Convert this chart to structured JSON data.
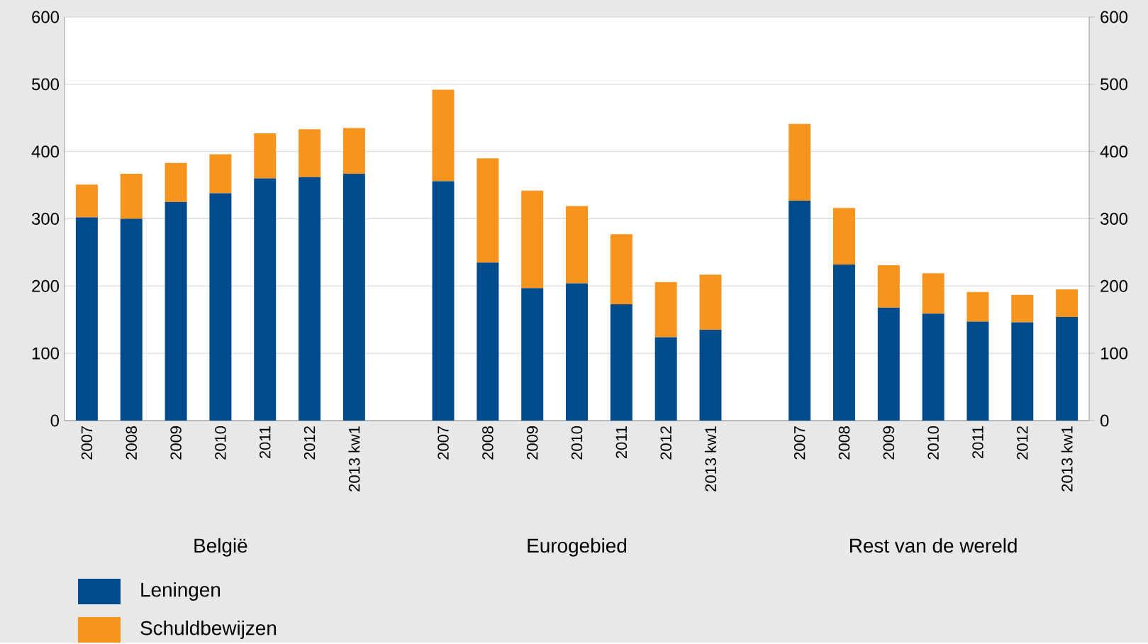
{
  "chart_data": {
    "type": "bar",
    "stacked": true,
    "categories": [
      "2007",
      "2008",
      "2009",
      "2010",
      "2011",
      "2012",
      "2013 kw1",
      null,
      "2007",
      "2008",
      "2009",
      "2010",
      "2011",
      "2012",
      "2013 kw1",
      null,
      "2007",
      "2008",
      "2009",
      "2010",
      "2011",
      "2012",
      "2013 kw1"
    ],
    "series": [
      {
        "name": "Leningen",
        "color": "#004b8d",
        "values": [
          302,
          300,
          325,
          338,
          360,
          362,
          367,
          null,
          356,
          235,
          197,
          204,
          173,
          124,
          135,
          null,
          327,
          232,
          168,
          159,
          147,
          146,
          154
        ]
      },
      {
        "name": "Schuldbewijzen",
        "color": "#f7941d",
        "values": [
          49,
          67,
          58,
          58,
          67,
          71,
          68,
          null,
          136,
          155,
          145,
          115,
          104,
          82,
          82,
          null,
          114,
          84,
          63,
          60,
          44,
          41,
          41
        ]
      }
    ],
    "ylim": [
      0,
      600
    ],
    "yticks": [
      0,
      100,
      200,
      300,
      400,
      500,
      600
    ],
    "y2lim": [
      0,
      600
    ],
    "y2ticks": [
      0,
      100,
      200,
      300,
      400,
      500,
      600
    ],
    "grid": "y",
    "legend": "bottom left",
    "annotations": [
      "België",
      "Eurogebied",
      "Rest van de wereld"
    ]
  }
}
